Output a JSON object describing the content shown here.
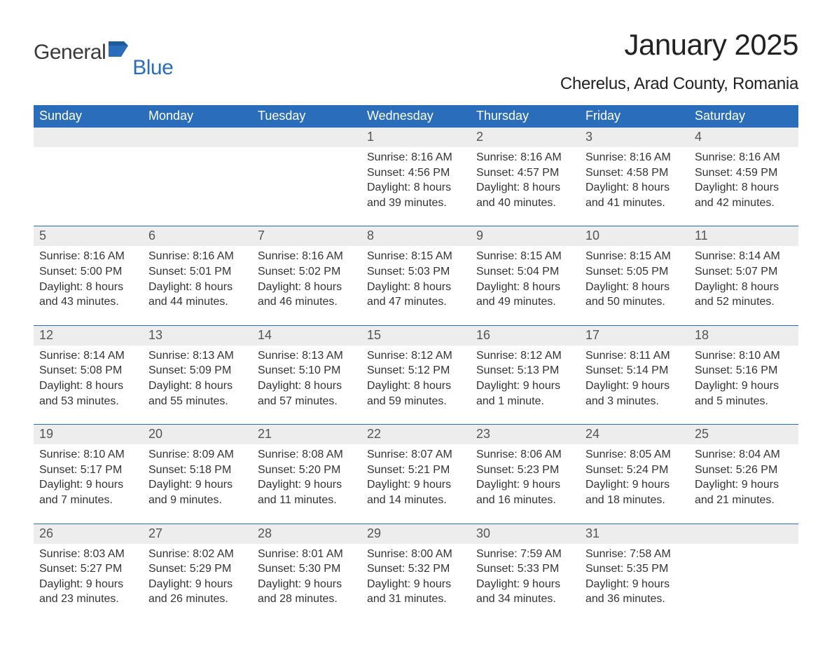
{
  "logo": {
    "main": "General",
    "sub": "Blue",
    "flag_color": "#2a6ebb"
  },
  "header": {
    "month_title": "January 2025",
    "location": "Cherelus, Arad County, Romania"
  },
  "style": {
    "header_bg": "#2a6ebb",
    "header_text": "#ffffff",
    "daynum_bg": "#ededed",
    "border_color": "#2a6ebb",
    "body_text": "#333333",
    "page_bg": "#ffffff",
    "font_family": "Arial, Helvetica, sans-serif",
    "title_fontsize": 42,
    "location_fontsize": 24,
    "dayhdr_fontsize": 18,
    "daynum_fontsize": 18,
    "data_fontsize": 16
  },
  "day_headers": [
    "Sunday",
    "Monday",
    "Tuesday",
    "Wednesday",
    "Thursday",
    "Friday",
    "Saturday"
  ],
  "weeks": [
    [
      {
        "blank": true
      },
      {
        "blank": true
      },
      {
        "blank": true
      },
      {
        "day": "1",
        "sunrise": "Sunrise: 8:16 AM",
        "sunset": "Sunset: 4:56 PM",
        "dl1": "Daylight: 8 hours",
        "dl2": "and 39 minutes."
      },
      {
        "day": "2",
        "sunrise": "Sunrise: 8:16 AM",
        "sunset": "Sunset: 4:57 PM",
        "dl1": "Daylight: 8 hours",
        "dl2": "and 40 minutes."
      },
      {
        "day": "3",
        "sunrise": "Sunrise: 8:16 AM",
        "sunset": "Sunset: 4:58 PM",
        "dl1": "Daylight: 8 hours",
        "dl2": "and 41 minutes."
      },
      {
        "day": "4",
        "sunrise": "Sunrise: 8:16 AM",
        "sunset": "Sunset: 4:59 PM",
        "dl1": "Daylight: 8 hours",
        "dl2": "and 42 minutes."
      }
    ],
    [
      {
        "day": "5",
        "sunrise": "Sunrise: 8:16 AM",
        "sunset": "Sunset: 5:00 PM",
        "dl1": "Daylight: 8 hours",
        "dl2": "and 43 minutes."
      },
      {
        "day": "6",
        "sunrise": "Sunrise: 8:16 AM",
        "sunset": "Sunset: 5:01 PM",
        "dl1": "Daylight: 8 hours",
        "dl2": "and 44 minutes."
      },
      {
        "day": "7",
        "sunrise": "Sunrise: 8:16 AM",
        "sunset": "Sunset: 5:02 PM",
        "dl1": "Daylight: 8 hours",
        "dl2": "and 46 minutes."
      },
      {
        "day": "8",
        "sunrise": "Sunrise: 8:15 AM",
        "sunset": "Sunset: 5:03 PM",
        "dl1": "Daylight: 8 hours",
        "dl2": "and 47 minutes."
      },
      {
        "day": "9",
        "sunrise": "Sunrise: 8:15 AM",
        "sunset": "Sunset: 5:04 PM",
        "dl1": "Daylight: 8 hours",
        "dl2": "and 49 minutes."
      },
      {
        "day": "10",
        "sunrise": "Sunrise: 8:15 AM",
        "sunset": "Sunset: 5:05 PM",
        "dl1": "Daylight: 8 hours",
        "dl2": "and 50 minutes."
      },
      {
        "day": "11",
        "sunrise": "Sunrise: 8:14 AM",
        "sunset": "Sunset: 5:07 PM",
        "dl1": "Daylight: 8 hours",
        "dl2": "and 52 minutes."
      }
    ],
    [
      {
        "day": "12",
        "sunrise": "Sunrise: 8:14 AM",
        "sunset": "Sunset: 5:08 PM",
        "dl1": "Daylight: 8 hours",
        "dl2": "and 53 minutes."
      },
      {
        "day": "13",
        "sunrise": "Sunrise: 8:13 AM",
        "sunset": "Sunset: 5:09 PM",
        "dl1": "Daylight: 8 hours",
        "dl2": "and 55 minutes."
      },
      {
        "day": "14",
        "sunrise": "Sunrise: 8:13 AM",
        "sunset": "Sunset: 5:10 PM",
        "dl1": "Daylight: 8 hours",
        "dl2": "and 57 minutes."
      },
      {
        "day": "15",
        "sunrise": "Sunrise: 8:12 AM",
        "sunset": "Sunset: 5:12 PM",
        "dl1": "Daylight: 8 hours",
        "dl2": "and 59 minutes."
      },
      {
        "day": "16",
        "sunrise": "Sunrise: 8:12 AM",
        "sunset": "Sunset: 5:13 PM",
        "dl1": "Daylight: 9 hours",
        "dl2": "and 1 minute."
      },
      {
        "day": "17",
        "sunrise": "Sunrise: 8:11 AM",
        "sunset": "Sunset: 5:14 PM",
        "dl1": "Daylight: 9 hours",
        "dl2": "and 3 minutes."
      },
      {
        "day": "18",
        "sunrise": "Sunrise: 8:10 AM",
        "sunset": "Sunset: 5:16 PM",
        "dl1": "Daylight: 9 hours",
        "dl2": "and 5 minutes."
      }
    ],
    [
      {
        "day": "19",
        "sunrise": "Sunrise: 8:10 AM",
        "sunset": "Sunset: 5:17 PM",
        "dl1": "Daylight: 9 hours",
        "dl2": "and 7 minutes."
      },
      {
        "day": "20",
        "sunrise": "Sunrise: 8:09 AM",
        "sunset": "Sunset: 5:18 PM",
        "dl1": "Daylight: 9 hours",
        "dl2": "and 9 minutes."
      },
      {
        "day": "21",
        "sunrise": "Sunrise: 8:08 AM",
        "sunset": "Sunset: 5:20 PM",
        "dl1": "Daylight: 9 hours",
        "dl2": "and 11 minutes."
      },
      {
        "day": "22",
        "sunrise": "Sunrise: 8:07 AM",
        "sunset": "Sunset: 5:21 PM",
        "dl1": "Daylight: 9 hours",
        "dl2": "and 14 minutes."
      },
      {
        "day": "23",
        "sunrise": "Sunrise: 8:06 AM",
        "sunset": "Sunset: 5:23 PM",
        "dl1": "Daylight: 9 hours",
        "dl2": "and 16 minutes."
      },
      {
        "day": "24",
        "sunrise": "Sunrise: 8:05 AM",
        "sunset": "Sunset: 5:24 PM",
        "dl1": "Daylight: 9 hours",
        "dl2": "and 18 minutes."
      },
      {
        "day": "25",
        "sunrise": "Sunrise: 8:04 AM",
        "sunset": "Sunset: 5:26 PM",
        "dl1": "Daylight: 9 hours",
        "dl2": "and 21 minutes."
      }
    ],
    [
      {
        "day": "26",
        "sunrise": "Sunrise: 8:03 AM",
        "sunset": "Sunset: 5:27 PM",
        "dl1": "Daylight: 9 hours",
        "dl2": "and 23 minutes."
      },
      {
        "day": "27",
        "sunrise": "Sunrise: 8:02 AM",
        "sunset": "Sunset: 5:29 PM",
        "dl1": "Daylight: 9 hours",
        "dl2": "and 26 minutes."
      },
      {
        "day": "28",
        "sunrise": "Sunrise: 8:01 AM",
        "sunset": "Sunset: 5:30 PM",
        "dl1": "Daylight: 9 hours",
        "dl2": "and 28 minutes."
      },
      {
        "day": "29",
        "sunrise": "Sunrise: 8:00 AM",
        "sunset": "Sunset: 5:32 PM",
        "dl1": "Daylight: 9 hours",
        "dl2": "and 31 minutes."
      },
      {
        "day": "30",
        "sunrise": "Sunrise: 7:59 AM",
        "sunset": "Sunset: 5:33 PM",
        "dl1": "Daylight: 9 hours",
        "dl2": "and 34 minutes."
      },
      {
        "day": "31",
        "sunrise": "Sunrise: 7:58 AM",
        "sunset": "Sunset: 5:35 PM",
        "dl1": "Daylight: 9 hours",
        "dl2": "and 36 minutes."
      },
      {
        "blank": true
      }
    ]
  ]
}
